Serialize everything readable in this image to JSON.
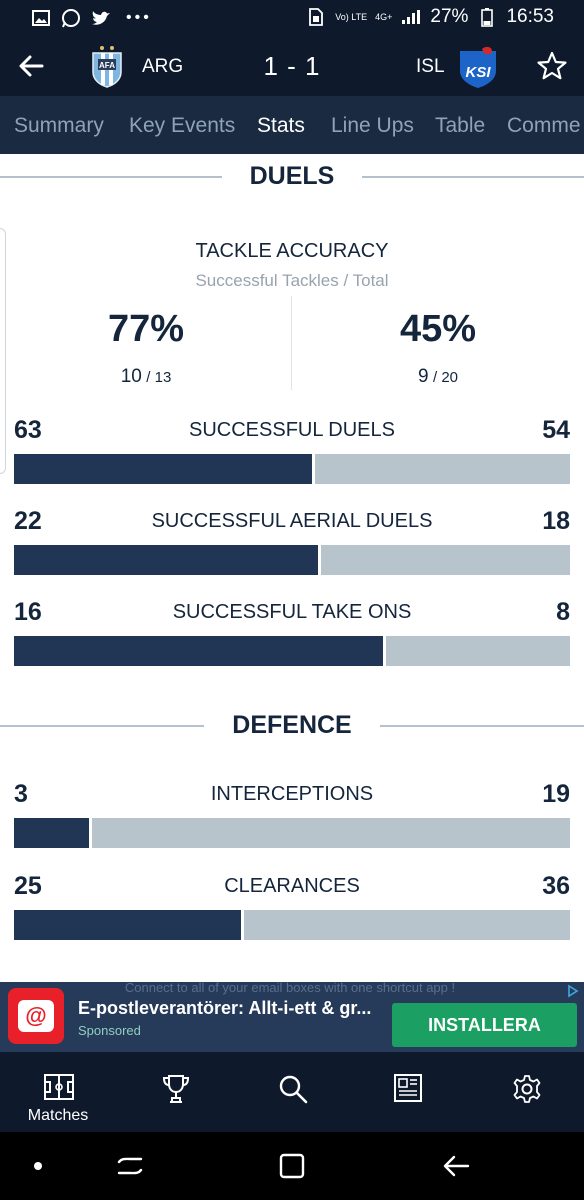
{
  "status_bar": {
    "battery": "27%",
    "time": "16:53",
    "network": "4G+",
    "volte": "Vo) LTE",
    "left_icons": [
      "image-icon",
      "whatsapp-icon",
      "twitter-icon",
      "more-dots-icon"
    ]
  },
  "header": {
    "home_team": "ARG",
    "away_team": "ISL",
    "score": "1 - 1",
    "away_logo_text": "KSI"
  },
  "tabs": [
    {
      "label": "Summary",
      "active": false
    },
    {
      "label": "Key Events",
      "active": false
    },
    {
      "label": "Stats",
      "active": true
    },
    {
      "label": "Line Ups",
      "active": false
    },
    {
      "label": "Table",
      "active": false
    },
    {
      "label": "Comme",
      "active": false
    }
  ],
  "duels": {
    "title": "DUELS",
    "tackle": {
      "title": "TACKLE ACCURACY",
      "subtitle": "Successful Tackles / Total",
      "home_pct": "77%",
      "home_made": "10",
      "home_total": "/ 13",
      "away_pct": "45%",
      "away_made": "9",
      "away_total": "/ 20"
    },
    "stats": [
      {
        "label": "SUCCESSFUL DUELS",
        "home": 63,
        "away": 54
      },
      {
        "label": "SUCCESSFUL AERIAL DUELS",
        "home": 22,
        "away": 18
      },
      {
        "label": "SUCCESSFUL TAKE ONS",
        "home": 16,
        "away": 8
      }
    ]
  },
  "defence": {
    "title": "DEFENCE",
    "stats": [
      {
        "label": "INTERCEPTIONS",
        "home": 3,
        "away": 19
      },
      {
        "label": "CLEARANCES",
        "home": 25,
        "away": 36
      }
    ]
  },
  "ad": {
    "title": "E-postleverantörer: Allt-i-ett & gr...",
    "sponsored": "Sponsored",
    "cta": "INSTALLERA",
    "background_text": "Connect to all of your email boxes with one shortcut app !"
  },
  "bottom_nav": [
    {
      "label": "Matches",
      "icon": "pitch-icon"
    },
    {
      "label": "",
      "icon": "trophy-icon"
    },
    {
      "label": "",
      "icon": "search-icon"
    },
    {
      "label": "",
      "icon": "news-icon"
    },
    {
      "label": "",
      "icon": "gear-icon"
    }
  ],
  "colors": {
    "header_bg": "#0e1a2c",
    "tabs_bg": "#1a2a40",
    "home_bar": "#203654",
    "away_bar": "#b8c4cc",
    "cta_green": "#1c9f62"
  }
}
